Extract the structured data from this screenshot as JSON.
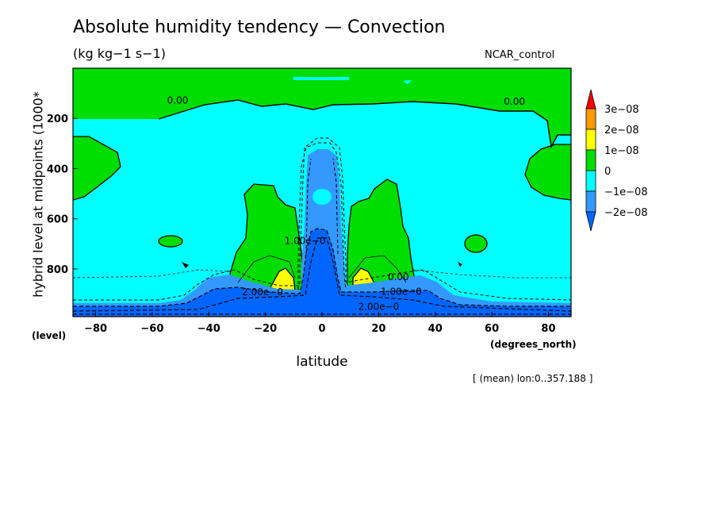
{
  "chart_data": {
    "type": "heatmap",
    "title": "Absolute humidity tendency — Convection",
    "units_label": "(kg kg−1 s−1)",
    "run_label": "NCAR_control",
    "xlabel": "latitude",
    "x_unit_label": "(degrees_north)",
    "ylabel": "hybrid level at midpoints (1000*",
    "y_unit_label": "(level)",
    "footnote": "[ (mean) lon:0..357.188 ]",
    "xlim": [
      -88,
      88
    ],
    "ylim": [
      990,
      0
    ],
    "x_ticks": [
      {
        "value": -80,
        "label": "−80"
      },
      {
        "value": -60,
        "label": "−60"
      },
      {
        "value": -40,
        "label": "−40"
      },
      {
        "value": -20,
        "label": "−20"
      },
      {
        "value": 0,
        "label": "0"
      },
      {
        "value": 20,
        "label": "20"
      },
      {
        "value": 40,
        "label": "40"
      },
      {
        "value": 60,
        "label": "60"
      },
      {
        "value": 80,
        "label": "80"
      }
    ],
    "y_ticks": [
      {
        "value": 200,
        "label": "200"
      },
      {
        "value": 400,
        "label": "400"
      },
      {
        "value": 600,
        "label": "600"
      },
      {
        "value": 800,
        "label": "800"
      }
    ],
    "levels": [
      -2e-08,
      -1e-08,
      0,
      1e-08,
      2e-08,
      3e-08
    ],
    "legend": [
      {
        "label": "3e−08",
        "color": "#ff9900"
      },
      {
        "label": "2e−08",
        "color": "#ffff00"
      },
      {
        "label": "1e−08",
        "color": "#00dd00"
      },
      {
        "label": "0",
        "color": "#00ffff"
      },
      {
        "label": "−1e−08",
        "color": "#3399ff"
      },
      {
        "label": "−2e−08",
        "color": ""
      }
    ],
    "colors": {
      "above_max": "#ff0000",
      "level_2_3": "#ff9900",
      "level_1_2": "#ffff00",
      "level_0_1": "#00dd00",
      "level_m1_0": "#00ffff",
      "level_m2_m1": "#3399ff",
      "below_min": "#0066ff"
    },
    "contour_labels": [
      {
        "text": "0.00",
        "x": -51,
        "y": 140
      },
      {
        "text": "0.00",
        "x": 68,
        "y": 145
      },
      {
        "text": "1.00e−0",
        "x": -6,
        "y": 700
      },
      {
        "text": "2.00e−0",
        "x": -21,
        "y": 905
      },
      {
        "text": "0.00",
        "x": 27,
        "y": 845
      },
      {
        "text": "1.00e−0",
        "x": 28,
        "y": 903
      },
      {
        "text": "2.00e−0",
        "x": 20,
        "y": 963
      }
    ]
  }
}
